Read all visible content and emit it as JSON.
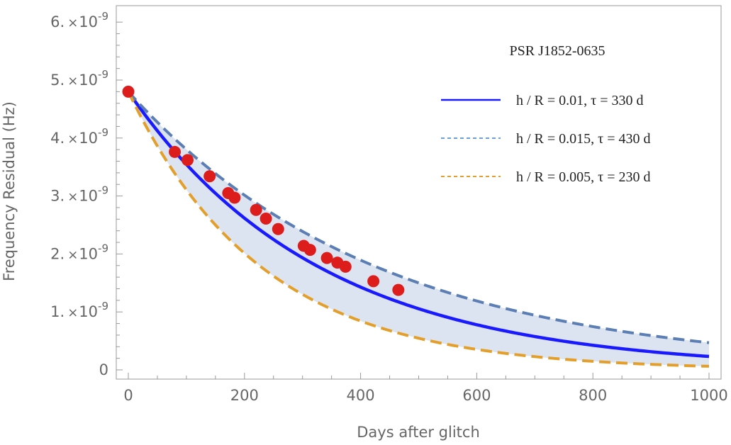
{
  "chart_data": {
    "type": "line",
    "title": "",
    "annotation": "PSR J1852-0635",
    "xlabel": "Days after glitch",
    "ylabel": "Frequency Residual (Hz)",
    "xlim": [
      0,
      1000
    ],
    "ylim": [
      0,
      6.2e-09
    ],
    "x_ticks": [
      0,
      200,
      400,
      600,
      800,
      1000
    ],
    "x_tick_labels": [
      "0",
      "200",
      "400",
      "600",
      "800",
      "1000"
    ],
    "y_ticks": [
      0,
      1e-09,
      2e-09,
      3e-09,
      4e-09,
      5e-09,
      6e-09
    ],
    "y_tick_labels": [
      {
        "mantissa": "0",
        "exponent": ""
      },
      {
        "mantissa": "1.",
        "exponent": "-9"
      },
      {
        "mantissa": "2.",
        "exponent": "-9"
      },
      {
        "mantissa": "3.",
        "exponent": "-9"
      },
      {
        "mantissa": "4.",
        "exponent": "-9"
      },
      {
        "mantissa": "5.",
        "exponent": "-9"
      },
      {
        "mantissa": "6.",
        "exponent": "-9"
      }
    ],
    "grid": false,
    "legend_position": "top-right",
    "series": [
      {
        "name": "h / R = 0.01,  τ = 330 d",
        "kind": "line",
        "style": "solid",
        "color": "#1a1aff",
        "amplitude": 4.8e-09,
        "tau": 330
      },
      {
        "name": "h / R = 0.015,  τ = 430 d",
        "kind": "line",
        "style": "dashed",
        "color": "#5b7fb4",
        "amplitude": 4.8e-09,
        "tau": 430
      },
      {
        "name": "h / R = 0.005,  τ = 230 d",
        "kind": "line",
        "style": "dashed",
        "color": "#e39f2a",
        "amplitude": 4.8e-09,
        "tau": 230
      }
    ],
    "legend": [
      {
        "text": "h / R = 0.01,  τ = 330 d",
        "color": "#1a1aff",
        "style": "solid"
      },
      {
        "text": "h / R = 0.015,  τ = 430 d",
        "color": "#6a9fd8",
        "style": "dashed"
      },
      {
        "text": "h / R = 0.005,  τ = 230 d",
        "color": "#e39f2a",
        "style": "dashed"
      }
    ],
    "band": {
      "between": [
        "h / R = 0.015,  τ = 430 d",
        "h / R = 0.005,  τ = 230 d"
      ],
      "color": "#dde4f1"
    },
    "scatter": {
      "color": "#dd1c1c",
      "points": [
        [
          0,
          4.8e-09
        ],
        [
          80,
          3.76e-09
        ],
        [
          102,
          3.62e-09
        ],
        [
          140,
          3.34e-09
        ],
        [
          172,
          3.05e-09
        ],
        [
          183,
          2.97e-09
        ],
        [
          220,
          2.76e-09
        ],
        [
          237,
          2.61e-09
        ],
        [
          258,
          2.43e-09
        ],
        [
          302,
          2.14e-09
        ],
        [
          313,
          2.07e-09
        ],
        [
          342,
          1.93e-09
        ],
        [
          360,
          1.85e-09
        ],
        [
          374,
          1.78e-09
        ],
        [
          422,
          1.53e-09
        ],
        [
          465,
          1.38e-09
        ]
      ]
    }
  }
}
